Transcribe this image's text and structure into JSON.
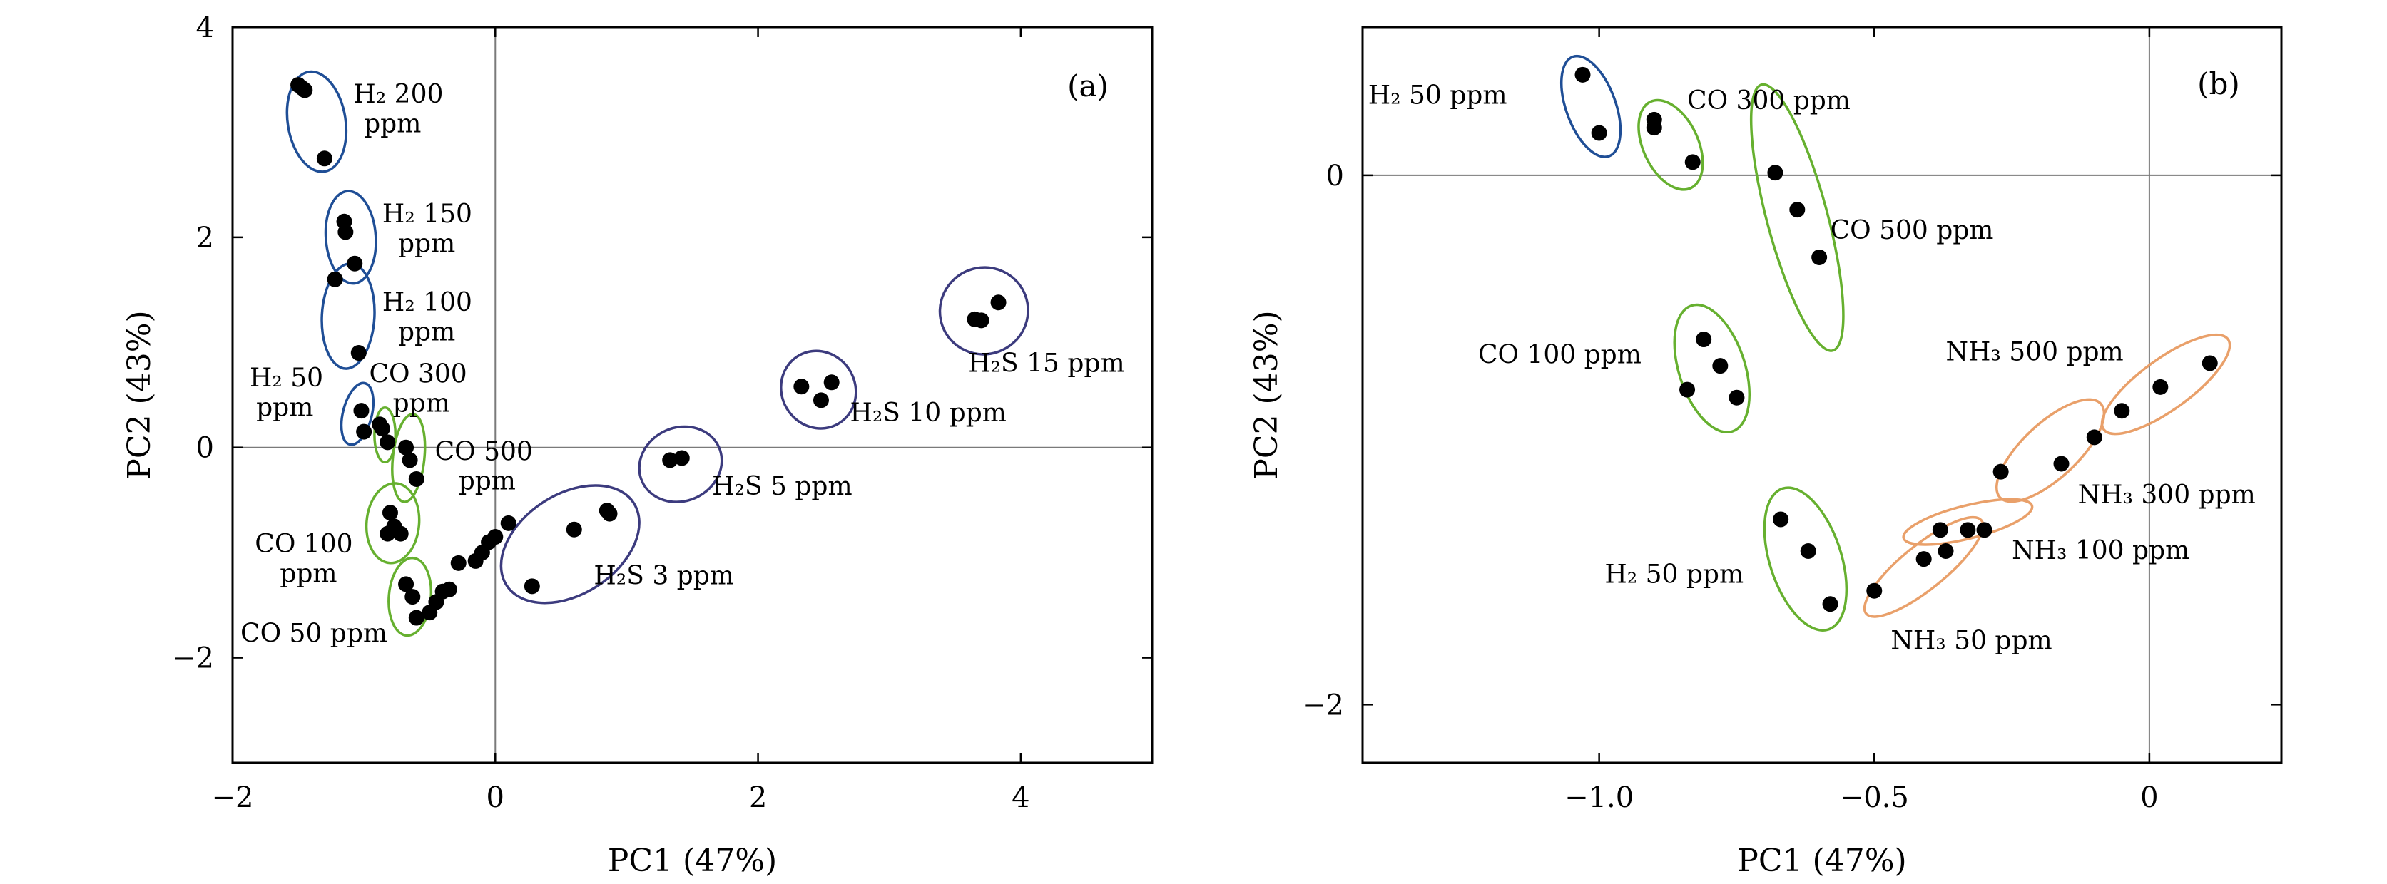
{
  "colors": {
    "H2": "#1f4e96",
    "CO": "#66b02f",
    "H2S": "#3c3b7e",
    "NH3": "#e9a06a",
    "point": "#000000",
    "frame": "#000000",
    "crosshair": "#7a7a7a"
  },
  "chart_data": [
    {
      "type": "scatter",
      "panel": "(a)",
      "xlabel": "PC1 (47%)",
      "ylabel": "PC2 (43%)",
      "xlim": [
        -2,
        5
      ],
      "ylim": [
        -3,
        4
      ],
      "xticks": [
        -2,
        0,
        2,
        4
      ],
      "yticks": [
        -2,
        0,
        2,
        4
      ],
      "crosshair": {
        "x": 0,
        "y": 0
      },
      "points": [
        [
          -1.5,
          3.45
        ],
        [
          -1.47,
          3.42
        ],
        [
          -1.45,
          3.4
        ],
        [
          -1.3,
          2.75
        ],
        [
          -1.15,
          2.15
        ],
        [
          -1.14,
          2.05
        ],
        [
          -1.07,
          1.75
        ],
        [
          -1.22,
          1.6
        ],
        [
          -1.04,
          0.9
        ],
        [
          -1.02,
          0.35
        ],
        [
          -1.0,
          0.15
        ],
        [
          -0.88,
          0.22
        ],
        [
          -0.86,
          0.18
        ],
        [
          -0.82,
          0.05
        ],
        [
          -0.68,
          0.0
        ],
        [
          -0.65,
          -0.12
        ],
        [
          -0.6,
          -0.3
        ],
        [
          -0.8,
          -0.62
        ],
        [
          -0.77,
          -0.75
        ],
        [
          -0.72,
          -0.82
        ],
        [
          -0.82,
          -0.82
        ],
        [
          -0.68,
          -1.3
        ],
        [
          -0.63,
          -1.42
        ],
        [
          -0.6,
          -1.62
        ],
        [
          -0.5,
          -1.57
        ],
        [
          -0.45,
          -1.47
        ],
        [
          -0.4,
          -1.37
        ],
        [
          -0.35,
          -1.35
        ],
        [
          -0.28,
          -1.1
        ],
        [
          -0.15,
          -1.08
        ],
        [
          -0.1,
          -1.0
        ],
        [
          -0.05,
          -0.9
        ],
        [
          0.0,
          -0.85
        ],
        [
          0.1,
          -0.72
        ],
        [
          0.28,
          -1.32
        ],
        [
          0.6,
          -0.78
        ],
        [
          0.85,
          -0.6
        ],
        [
          0.87,
          -0.63
        ],
        [
          1.33,
          -0.12
        ],
        [
          1.42,
          -0.1
        ],
        [
          2.33,
          0.58
        ],
        [
          2.48,
          0.45
        ],
        [
          2.56,
          0.62
        ],
        [
          3.65,
          1.22
        ],
        [
          3.7,
          1.21
        ],
        [
          3.83,
          1.38
        ]
      ],
      "ellipses": [
        {
          "group": "H2",
          "cx": -1.36,
          "cy": 3.1,
          "rx": 0.22,
          "ry": 0.48,
          "angle": -9
        },
        {
          "group": "H2",
          "cx": -1.1,
          "cy": 2.0,
          "rx": 0.19,
          "ry": 0.44,
          "angle": -4
        },
        {
          "group": "H2",
          "cx": -1.12,
          "cy": 1.25,
          "rx": 0.2,
          "ry": 0.5,
          "angle": 3
        },
        {
          "group": "H2",
          "cx": -1.05,
          "cy": 0.32,
          "rx": 0.11,
          "ry": 0.3,
          "angle": 14
        },
        {
          "group": "CO",
          "cx": -0.84,
          "cy": 0.12,
          "rx": 0.08,
          "ry": 0.26,
          "angle": 0
        },
        {
          "group": "CO",
          "cx": -0.66,
          "cy": -0.1,
          "rx": 0.12,
          "ry": 0.42,
          "angle": 6
        },
        {
          "group": "CO",
          "cx": -0.78,
          "cy": -0.72,
          "rx": 0.2,
          "ry": 0.38,
          "angle": 5
        },
        {
          "group": "CO",
          "cx": -0.65,
          "cy": -1.42,
          "rx": 0.16,
          "ry": 0.37,
          "angle": 5
        },
        {
          "group": "H2S",
          "cx": 0.57,
          "cy": -0.92,
          "rx": 0.38,
          "ry": 0.72,
          "angle": 57
        },
        {
          "group": "H2S",
          "cx": 1.41,
          "cy": -0.16,
          "rx": 0.28,
          "ry": 0.4,
          "angle": 66
        },
        {
          "group": "H2S",
          "cx": 2.46,
          "cy": 0.55,
          "rx": 0.3,
          "ry": 0.35,
          "angle": 60
        },
        {
          "group": "H2S",
          "cx": 3.72,
          "cy": 1.3,
          "rx": 0.33,
          "ry": 0.42,
          "angle": 70
        }
      ],
      "annotations": [
        {
          "text": "H₂ 200",
          "x": -1.08,
          "y": 3.28
        },
        {
          "text": "ppm",
          "x": -1.0,
          "y": 3.0
        },
        {
          "text": "H₂ 150",
          "x": -0.86,
          "y": 2.14
        },
        {
          "text": "ppm",
          "x": -0.74,
          "y": 1.86
        },
        {
          "text": "H₂ 100",
          "x": -0.86,
          "y": 1.3
        },
        {
          "text": "ppm",
          "x": -0.74,
          "y": 1.02
        },
        {
          "text": "H₂ 50",
          "x": -1.87,
          "y": 0.58
        },
        {
          "text": "ppm",
          "x": -1.82,
          "y": 0.3
        },
        {
          "text": "CO 300",
          "x": -0.96,
          "y": 0.62
        },
        {
          "text": "ppm",
          "x": -0.78,
          "y": 0.34
        },
        {
          "text": "CO 500",
          "x": -0.46,
          "y": -0.12
        },
        {
          "text": "ppm",
          "x": -0.28,
          "y": -0.4
        },
        {
          "text": "CO 100",
          "x": -1.83,
          "y": -1.0
        },
        {
          "text": "ppm",
          "x": -1.64,
          "y": -1.28
        },
        {
          "text": "CO 50 ppm",
          "x": -1.94,
          "y": -1.85
        },
        {
          "text": "H₂S 3 ppm",
          "x": 0.75,
          "y": -1.3
        },
        {
          "text": "H₂S 5 ppm",
          "x": 1.65,
          "y": -0.45
        },
        {
          "text": "H₂S 10 ppm",
          "x": 2.7,
          "y": 0.25
        },
        {
          "text": "H₂S 15 ppm",
          "x": 3.6,
          "y": 0.72
        }
      ]
    },
    {
      "type": "scatter",
      "panel": "(b)",
      "xlabel": "PC1 (47%)",
      "ylabel": "PC2 (43%)",
      "xlim": [
        -1.43,
        0.24
      ],
      "ylim": [
        -2.22,
        0.56
      ],
      "xticks": [
        -1.0,
        -0.5,
        0
      ],
      "xtick_labels": [
        "−1.0",
        "−0.5",
        "0"
      ],
      "yticks": [
        -2,
        0
      ],
      "crosshair": {
        "x": 0,
        "y": 0
      },
      "points": [
        [
          -1.03,
          0.38
        ],
        [
          -1.0,
          0.16
        ],
        [
          -0.9,
          0.21
        ],
        [
          -0.9,
          0.18
        ],
        [
          -0.83,
          0.05
        ],
        [
          -0.68,
          0.01
        ],
        [
          -0.64,
          -0.13
        ],
        [
          -0.6,
          -0.31
        ],
        [
          -0.81,
          -0.62
        ],
        [
          -0.78,
          -0.72
        ],
        [
          -0.84,
          -0.81
        ],
        [
          -0.75,
          -0.84
        ],
        [
          -0.67,
          -1.3
        ],
        [
          -0.62,
          -1.42
        ],
        [
          -0.58,
          -1.62
        ],
        [
          -0.5,
          -1.57
        ],
        [
          -0.41,
          -1.45
        ],
        [
          -0.37,
          -1.42
        ],
        [
          -0.38,
          -1.34
        ],
        [
          -0.33,
          -1.34
        ],
        [
          -0.3,
          -1.34
        ],
        [
          -0.27,
          -1.12
        ],
        [
          -0.16,
          -1.09
        ],
        [
          -0.1,
          -0.99
        ],
        [
          -0.05,
          -0.89
        ],
        [
          0.02,
          -0.8
        ],
        [
          0.11,
          -0.71
        ]
      ],
      "ellipses": [
        {
          "group": "H2",
          "cx": -1.015,
          "cy": 0.26,
          "rx": 0.045,
          "ry": 0.2,
          "angle": -20
        },
        {
          "group": "CO",
          "cx": -0.87,
          "cy": 0.115,
          "rx": 0.05,
          "ry": 0.18,
          "angle": -25
        },
        {
          "group": "CO",
          "cx": -0.64,
          "cy": -0.16,
          "rx": 0.055,
          "ry": 0.52,
          "angle": -15
        },
        {
          "group": "CO",
          "cx": -0.795,
          "cy": -0.73,
          "rx": 0.06,
          "ry": 0.25,
          "angle": -18
        },
        {
          "group": "CO",
          "cx": -0.625,
          "cy": -1.45,
          "rx": 0.065,
          "ry": 0.28,
          "angle": -18
        },
        {
          "group": "NH3",
          "cx": -0.41,
          "cy": -1.48,
          "rx": 0.04,
          "ry": 0.28,
          "angle": 51
        },
        {
          "group": "NH3",
          "cx": -0.33,
          "cy": -1.31,
          "rx": 0.03,
          "ry": 0.25,
          "angle": 76
        },
        {
          "group": "NH3",
          "cx": -0.18,
          "cy": -1.04,
          "rx": 0.05,
          "ry": 0.26,
          "angle": 47
        },
        {
          "group": "NH3",
          "cx": 0.03,
          "cy": -0.79,
          "rx": 0.046,
          "ry": 0.29,
          "angle": 54
        }
      ],
      "annotations": [
        {
          "text": "H₂ 50 ppm",
          "x": -1.42,
          "y": 0.27
        },
        {
          "text": "CO 300 ppm",
          "x": -0.84,
          "y": 0.25
        },
        {
          "text": "CO 500 ppm",
          "x": -0.58,
          "y": -0.24
        },
        {
          "text": "CO 100 ppm",
          "x": -1.22,
          "y": -0.71
        },
        {
          "text": "NH₃ 500 ppm",
          "x": -0.37,
          "y": -0.7
        },
        {
          "text": "NH₃ 300 ppm",
          "x": -0.13,
          "y": -1.24
        },
        {
          "text": "NH₃ 100 ppm",
          "x": -0.25,
          "y": -1.45
        },
        {
          "text": "H₂ 50 ppm",
          "x": -0.99,
          "y": -1.54
        },
        {
          "text": "NH₃ 50 ppm",
          "x": -0.47,
          "y": -1.79
        }
      ]
    }
  ]
}
